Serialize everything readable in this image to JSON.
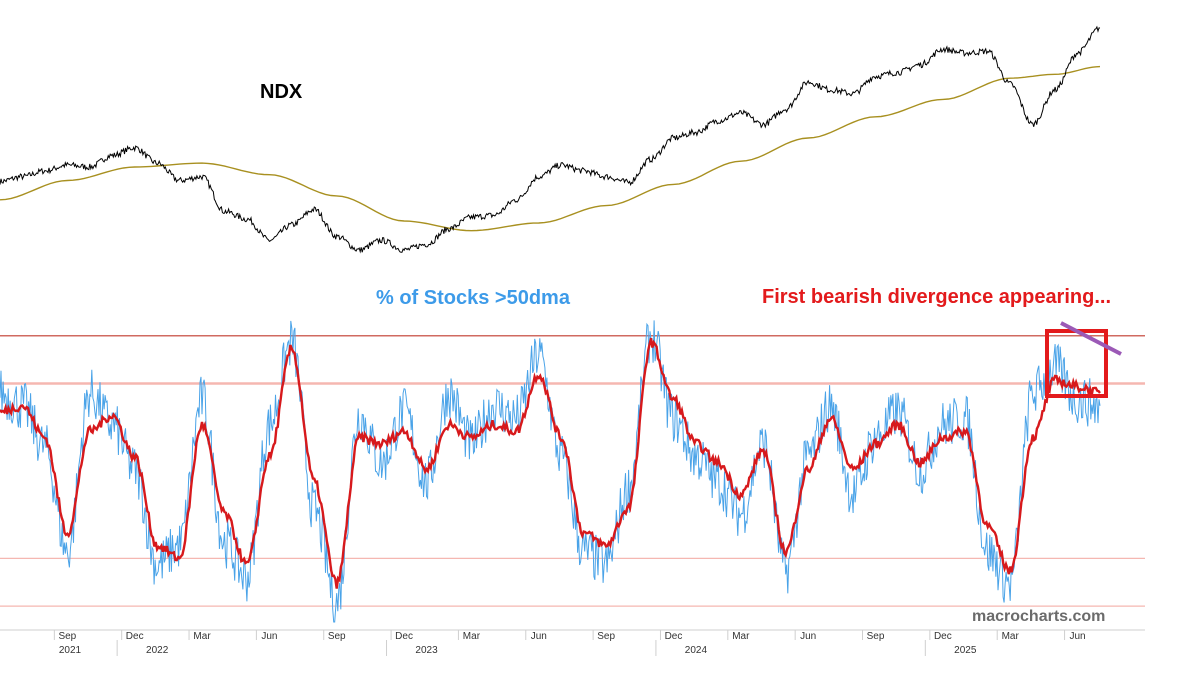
{
  "chart_data": [
    {
      "type": "line",
      "title": "NDX",
      "xlabel": "",
      "ylabel": "",
      "grid": false,
      "x_range": [
        "2021-06",
        "2025-07"
      ],
      "series": [
        {
          "color": "#000000",
          "x": [
            "2021-06",
            "2021-07",
            "2021-08",
            "2021-09",
            "2021-10",
            "2021-11",
            "2021-12",
            "2022-01",
            "2022-02",
            "2022-03",
            "2022-04",
            "2022-05",
            "2022-06",
            "2022-07",
            "2022-08",
            "2022-09",
            "2022-10",
            "2022-11",
            "2022-12",
            "2023-01",
            "2023-02",
            "2023-03",
            "2023-04",
            "2023-05",
            "2023-06",
            "2023-07",
            "2023-08",
            "2023-09",
            "2023-10",
            "2023-11",
            "2023-12",
            "2024-01",
            "2024-02",
            "2024-03",
            "2024-04",
            "2024-05",
            "2024-06",
            "2024-07",
            "2024-08",
            "2024-09",
            "2024-10",
            "2024-11",
            "2024-12",
            "2025-01",
            "2025-02",
            "2025-03",
            "2025-04",
            "2025-05",
            "2025-06",
            "2025-07"
          ],
          "values": [
            14550,
            14800,
            15100,
            15400,
            15300,
            15900,
            16300,
            15500,
            14600,
            14800,
            13000,
            12600,
            11500,
            12300,
            13100,
            11700,
            11000,
            11500,
            11000,
            11300,
            12100,
            12700,
            12800,
            13600,
            14800,
            15400,
            15100,
            14800,
            14500,
            15700,
            16800,
            17100,
            17700,
            18100,
            17500,
            18300,
            19700,
            19300,
            19100,
            20000,
            20200,
            20600,
            21400,
            21200,
            21300,
            19600,
            17500,
            19300,
            21200,
            22500
          ]
        },
        {
          "color": "#a89020",
          "x": [
            "2021-06",
            "2021-09",
            "2021-12",
            "2022-03",
            "2022-06",
            "2022-09",
            "2022-12",
            "2023-03",
            "2023-06",
            "2023-09",
            "2023-12",
            "2024-03",
            "2024-06",
            "2024-09",
            "2024-12",
            "2025-03",
            "2025-05",
            "2025-07"
          ],
          "values": [
            13600,
            14600,
            15300,
            15500,
            14900,
            13800,
            12500,
            12000,
            12400,
            13300,
            14400,
            15600,
            16800,
            17900,
            18800,
            19900,
            20100,
            20500
          ]
        }
      ]
    },
    {
      "type": "line",
      "title": "% of Stocks >50dma",
      "xlabel": "",
      "ylabel": "",
      "grid": false,
      "ylim": [
        0,
        100
      ],
      "x_range": [
        "2021-06",
        "2025-07"
      ],
      "reference_lines": [
        90,
        75,
        20,
        5
      ],
      "series": [
        {
          "color": "#4aa3e8",
          "x": [
            "2021-06",
            "2021-07",
            "2021-08",
            "2021-09",
            "2021-10",
            "2021-11",
            "2021-12",
            "2022-01",
            "2022-02",
            "2022-03",
            "2022-04",
            "2022-05",
            "2022-06",
            "2022-07",
            "2022-08",
            "2022-09",
            "2022-10",
            "2022-11",
            "2022-12",
            "2023-01",
            "2023-02",
            "2023-03",
            "2023-04",
            "2023-05",
            "2023-06",
            "2023-07",
            "2023-08",
            "2023-09",
            "2023-10",
            "2023-11",
            "2023-12",
            "2024-01",
            "2024-02",
            "2024-03",
            "2024-04",
            "2024-05",
            "2024-06",
            "2024-07",
            "2024-08",
            "2024-09",
            "2024-10",
            "2024-11",
            "2024-12",
            "2025-01",
            "2025-02",
            "2025-03",
            "2025-04",
            "2025-05",
            "2025-06",
            "2025-07"
          ],
          "values": [
            72,
            68,
            55,
            22,
            72,
            62,
            48,
            18,
            24,
            70,
            25,
            14,
            62,
            88,
            35,
            6,
            65,
            50,
            66,
            44,
            72,
            56,
            68,
            64,
            84,
            52,
            22,
            18,
            42,
            90,
            64,
            52,
            44,
            34,
            56,
            16,
            52,
            68,
            40,
            58,
            66,
            48,
            62,
            64,
            22,
            12,
            72,
            80,
            70,
            68
          ]
        },
        {
          "color": "#d7191c",
          "x": [
            "2021-06",
            "2021-07",
            "2021-08",
            "2021-09",
            "2021-10",
            "2021-11",
            "2021-12",
            "2022-01",
            "2022-02",
            "2022-03",
            "2022-04",
            "2022-05",
            "2022-06",
            "2022-07",
            "2022-08",
            "2022-09",
            "2022-10",
            "2022-11",
            "2022-12",
            "2023-01",
            "2023-02",
            "2023-03",
            "2023-04",
            "2023-05",
            "2023-06",
            "2023-07",
            "2023-08",
            "2023-09",
            "2023-10",
            "2023-11",
            "2023-12",
            "2024-01",
            "2024-02",
            "2024-03",
            "2024-04",
            "2024-05",
            "2024-06",
            "2024-07",
            "2024-08",
            "2024-09",
            "2024-10",
            "2024-11",
            "2024-12",
            "2025-01",
            "2025-02",
            "2025-03",
            "2025-04",
            "2025-05",
            "2025-06",
            "2025-07"
          ],
          "values": [
            66,
            68,
            58,
            28,
            60,
            65,
            52,
            24,
            20,
            62,
            34,
            18,
            52,
            86,
            44,
            12,
            58,
            56,
            60,
            48,
            62,
            58,
            62,
            60,
            78,
            58,
            28,
            24,
            36,
            88,
            70,
            56,
            50,
            40,
            54,
            22,
            48,
            64,
            48,
            56,
            62,
            50,
            58,
            60,
            30,
            16,
            58,
            76,
            74,
            72
          ]
        }
      ],
      "annotations": [
        "First bearish divergence appearing..."
      ]
    }
  ],
  "x_axis": {
    "months": [
      "Sep",
      "Dec",
      "Mar",
      "Jun",
      "Sep",
      "Dec",
      "Mar",
      "Jun",
      "Sep",
      "Dec",
      "Mar",
      "Jun",
      "Sep",
      "Dec",
      "Mar",
      "Jun"
    ],
    "years": [
      "2021",
      "2022",
      "2023",
      "2024",
      "2025"
    ]
  },
  "colors": {
    "ndx": "#000000",
    "ndx_ma": "#a89020",
    "breadth_raw": "#4aa3e8",
    "breadth_smooth": "#d7191c",
    "ref_line_dark": "#c0392b",
    "ref_line_light": "#f5b7b1",
    "annotation": "#e31a1c",
    "box": "#e31a1c",
    "trend": "#9b59b6",
    "title_blue": "#3d9be9"
  },
  "watermark": "macrocharts.com"
}
